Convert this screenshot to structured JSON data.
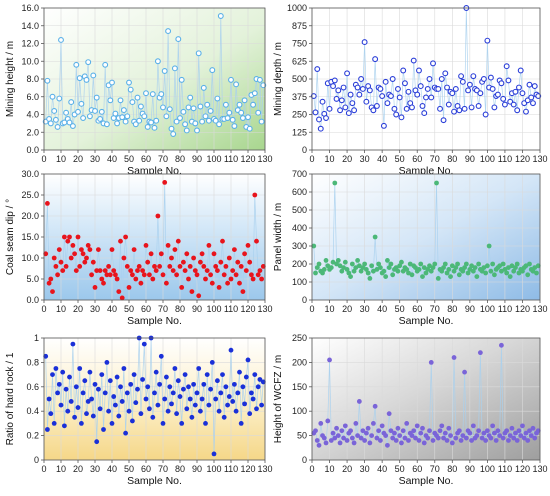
{
  "chart_data": [
    {
      "type": "scatter",
      "xlabel": "Sample No.",
      "ylabel": "Mining height / m",
      "xlim": [
        0,
        130
      ],
      "ylim": [
        0,
        16
      ],
      "xticks": [
        "0",
        "10",
        "20",
        "30",
        "40",
        "50",
        "60",
        "70",
        "80",
        "90",
        "100",
        "110",
        "120",
        "130"
      ],
      "yticks": [
        "0.0",
        "2.0",
        "4.0",
        "6.0",
        "8.0",
        "10.0",
        "12.0",
        "14.0",
        "16.0"
      ],
      "marker": "open-circle",
      "color": "#5ab0e8",
      "background": "green-gradient",
      "grid": true,
      "y": [
        3.2,
        7.8,
        3.5,
        3.0,
        6.0,
        4.4,
        3.4,
        2.6,
        5.8,
        12.4,
        3.0,
        3.1,
        4.2,
        3.5,
        3.1,
        5.4,
        2.7,
        4.0,
        9.6,
        4.3,
        8.1,
        5.2,
        3.6,
        8.3,
        7.9,
        9.9,
        3.8,
        4.5,
        8.4,
        4.4,
        5.9,
        3.3,
        3.5,
        4.3,
        3.0,
        9.6,
        2.9,
        7.3,
        5.6,
        7.6,
        3.6,
        4.1,
        3.0,
        3.6,
        5.6,
        3.7,
        4.5,
        3.2,
        3.8,
        7.6,
        6.8,
        5.4,
        3.2,
        2.9,
        5.9,
        3.3,
        4.9,
        4.1,
        3.8,
        6.4,
        2.6,
        3.2,
        3.1,
        6.3,
        2.5,
        3.3,
        10.0,
        5.9,
        6.3,
        4.8,
        8.9,
        3.8,
        13.4,
        4.6,
        2.4,
        1.8,
        9.2,
        3.2,
        12.5,
        3.6,
        7.9,
        4.3,
        2.9,
        2.2,
        4.8,
        5.9,
        3.2,
        4.7,
        3.0,
        2.2,
        10.9,
        4.9,
        3.2,
        7.0,
        3.8,
        5.1,
        3.3,
        4.4,
        9.0,
        3.5,
        3.3,
        5.8,
        2.9,
        15.1,
        3.5,
        3.5,
        5.1,
        3.6,
        4.2,
        7.9,
        3.4,
        2.7,
        7.4,
        4.5,
        5.1,
        4.2,
        3.6,
        5.6,
        2.6,
        3.7,
        2.4,
        6.2,
        5.1,
        6.4,
        8.0,
        4.2,
        7.9,
        3.2,
        7.3
      ]
    },
    {
      "type": "scatter",
      "xlabel": "Sample No.",
      "ylabel": "Mining depth / m",
      "xlim": [
        0,
        130
      ],
      "ylim": [
        0,
        1000
      ],
      "xticks": [
        "0",
        "10",
        "20",
        "30",
        "40",
        "50",
        "60",
        "70",
        "80",
        "90",
        "100",
        "110",
        "120",
        "130"
      ],
      "yticks": [
        "0",
        "125",
        "250",
        "375",
        "500",
        "625",
        "750",
        "875",
        "1000"
      ],
      "marker": "open-circle",
      "color": "#2a3ed8",
      "background": "white",
      "grid": true,
      "y": [
        380,
        265,
        570,
        215,
        150,
        340,
        255,
        225,
        470,
        290,
        480,
        450,
        490,
        360,
        420,
        280,
        350,
        440,
        300,
        540,
        260,
        390,
        330,
        280,
        460,
        440,
        390,
        500,
        430,
        760,
        340,
        450,
        420,
        300,
        280,
        640,
        310,
        440,
        430,
        380,
        170,
        480,
        330,
        390,
        380,
        500,
        290,
        250,
        430,
        370,
        230,
        560,
        470,
        290,
        410,
        330,
        300,
        630,
        420,
        390,
        560,
        450,
        310,
        260,
        370,
        430,
        500,
        370,
        610,
        440,
        430,
        430,
        290,
        500,
        210,
        540,
        440,
        320,
        410,
        400,
        270,
        430,
        310,
        280,
        520,
        480,
        290,
        1000,
        420,
        460,
        300,
        520,
        430,
        420,
        310,
        400,
        480,
        500,
        250,
        770,
        440,
        510,
        430,
        300,
        380,
        390,
        490,
        470,
        360,
        320,
        590,
        490,
        340,
        400,
        320,
        410,
        280,
        440,
        560,
        400,
        330,
        270,
        350,
        460,
        370,
        330,
        450,
        390,
        380
      ]
    },
    {
      "type": "scatter",
      "xlabel": "Sample No.",
      "ylabel": "Coal seam dip / °",
      "xlim": [
        0,
        130
      ],
      "ylim": [
        0,
        30
      ],
      "xticks": [
        "0",
        "10",
        "20",
        "30",
        "40",
        "50",
        "60",
        "70",
        "80",
        "90",
        "100",
        "110",
        "120",
        "130"
      ],
      "yticks": [
        "0.0",
        "5.0",
        "10.0",
        "15.0",
        "20.0",
        "25.0",
        "30.0"
      ],
      "marker": "filled-circle",
      "color": "#e8141c",
      "background": "blue-gradient",
      "grid": true,
      "y": [
        11,
        23,
        4,
        5,
        2,
        10,
        8,
        6,
        12,
        9,
        7,
        15,
        8,
        14,
        15,
        10,
        13,
        11,
        7,
        15,
        8,
        12,
        11,
        9,
        10,
        13,
        12,
        6,
        9,
        3,
        7,
        12,
        7,
        5,
        4,
        7,
        6,
        8,
        6,
        12,
        7,
        6,
        5,
        2,
        14,
        0.5,
        10,
        15,
        8,
        3,
        7,
        6,
        12,
        5,
        7,
        8,
        4,
        7,
        6,
        13,
        9,
        6,
        11,
        5,
        8,
        7,
        20,
        8,
        11,
        6,
        28,
        4,
        13,
        8,
        10,
        7,
        12,
        6,
        14,
        8,
        3,
        9,
        7,
        11,
        5,
        8,
        2,
        10,
        7,
        6,
        1,
        9,
        11,
        8,
        5,
        7,
        13,
        6,
        4,
        11,
        8,
        7,
        3,
        9,
        14,
        6,
        8,
        4,
        10,
        5,
        7,
        12,
        6,
        9,
        4,
        8,
        2,
        11,
        7,
        13,
        9,
        6,
        5,
        25,
        14,
        6,
        7,
        5,
        8
      ]
    },
    {
      "type": "scatter",
      "xlabel": "Sample No.",
      "ylabel": "Panel width / m",
      "xlim": [
        0,
        130
      ],
      "ylim": [
        0,
        700
      ],
      "xticks": [
        "0",
        "10",
        "20",
        "30",
        "40",
        "50",
        "60",
        "70",
        "80",
        "90",
        "100",
        "110",
        "120",
        "130"
      ],
      "yticks": [
        "0",
        "100",
        "200",
        "300",
        "400",
        "500",
        "600",
        "700"
      ],
      "marker": "filled-circle",
      "color": "#4cb878",
      "background": "blue-gradient",
      "grid": true,
      "y": [
        300,
        150,
        180,
        200,
        160,
        150,
        170,
        220,
        190,
        170,
        180,
        210,
        650,
        200,
        220,
        190,
        160,
        180,
        210,
        170,
        150,
        130,
        200,
        160,
        180,
        220,
        190,
        160,
        180,
        200,
        170,
        150,
        120,
        190,
        160,
        350,
        170,
        200,
        180,
        150,
        160,
        130,
        220,
        180,
        200,
        140,
        170,
        180,
        160,
        190,
        210,
        160,
        180,
        170,
        150,
        200,
        140,
        190,
        180,
        160,
        170,
        200,
        130,
        180,
        150,
        170,
        190,
        160,
        180,
        200,
        650,
        120,
        170,
        160,
        180,
        200,
        150,
        170,
        130,
        190,
        160,
        180,
        200,
        140,
        170,
        160,
        180,
        200,
        150,
        170,
        190,
        160,
        180,
        130,
        200,
        170,
        160,
        180,
        150,
        190,
        300,
        160,
        200,
        140,
        170,
        180,
        190,
        160,
        200,
        170,
        150,
        180,
        130,
        190,
        160,
        180,
        200,
        150,
        170,
        160,
        180,
        190,
        140,
        200,
        170,
        160,
        180,
        150,
        190
      ]
    },
    {
      "type": "scatter",
      "xlabel": "Sample No.",
      "ylabel": "Ratio of hard rock / 1",
      "xlim": [
        0,
        130
      ],
      "ylim": [
        0,
        1
      ],
      "xticks": [
        "0",
        "10",
        "20",
        "30",
        "40",
        "50",
        "60",
        "70",
        "80",
        "90",
        "100",
        "110",
        "120",
        "130"
      ],
      "yticks": [
        "0",
        "0.2",
        "0.4",
        "0.6",
        "0.8",
        "1"
      ],
      "marker": "filled-circle",
      "color": "#1a30d8",
      "background": "yellow-gradient",
      "grid": true,
      "y": [
        0.85,
        0.25,
        0.5,
        0.38,
        0.7,
        0.3,
        0.75,
        0.55,
        0.62,
        0.45,
        0.72,
        0.28,
        0.58,
        0.4,
        0.68,
        0.48,
        0.95,
        0.35,
        0.6,
        0.43,
        0.75,
        0.3,
        0.55,
        0.65,
        0.38,
        0.48,
        0.72,
        0.5,
        0.36,
        0.62,
        0.15,
        0.58,
        0.42,
        0.7,
        0.25,
        0.55,
        0.8,
        0.4,
        0.65,
        0.3,
        0.52,
        0.45,
        0.68,
        0.36,
        0.6,
        0.48,
        0.75,
        0.22,
        0.55,
        0.4,
        0.62,
        0.32,
        0.7,
        0.47,
        0.58,
        1.0,
        0.38,
        0.66,
        0.95,
        0.5,
        0.6,
        0.42,
        1.0,
        0.35,
        0.55,
        0.72,
        0.45,
        0.62,
        0.85,
        0.3,
        0.5,
        0.68,
        0.4,
        0.6,
        0.46,
        0.55,
        0.75,
        0.38,
        0.65,
        0.52,
        0.3,
        0.58,
        0.7,
        0.42,
        0.6,
        0.5,
        0.35,
        0.62,
        0.45,
        0.55,
        0.75,
        0.4,
        0.5,
        0.62,
        0.3,
        0.7,
        0.45,
        0.58,
        0.8,
        0.05,
        0.5,
        0.65,
        0.4,
        0.55,
        0.7,
        0.35,
        0.6,
        0.45,
        0.52,
        0.9,
        0.48,
        0.62,
        0.4,
        0.55,
        0.72,
        0.3,
        0.6,
        0.46,
        0.68,
        0.82,
        0.38,
        0.55,
        0.5,
        0.7,
        0.42,
        0.6,
        0.66,
        0.45,
        0.64
      ]
    },
    {
      "type": "scatter",
      "xlabel": "Sample No.",
      "ylabel": "Height of WCFZ / m",
      "xlim": [
        0,
        130
      ],
      "ylim": [
        0,
        250
      ],
      "xticks": [
        "0",
        "10",
        "20",
        "30",
        "40",
        "50",
        "60",
        "70",
        "80",
        "90",
        "100",
        "110",
        "120",
        "130"
      ],
      "yticks": [
        "0",
        "50",
        "100",
        "150",
        "200",
        "250"
      ],
      "marker": "filled-circle",
      "color": "#7a64d8",
      "background": "gray-gradient",
      "grid": true,
      "y": [
        55,
        60,
        40,
        30,
        75,
        50,
        45,
        35,
        80,
        205,
        40,
        55,
        45,
        65,
        50,
        35,
        60,
        45,
        70,
        40,
        55,
        60,
        45,
        35,
        75,
        50,
        120,
        45,
        60,
        40,
        55,
        65,
        35,
        50,
        75,
        110,
        45,
        60,
        40,
        70,
        55,
        50,
        30,
        95,
        60,
        45,
        55,
        40,
        65,
        50,
        35,
        60,
        45,
        75,
        40,
        55,
        50,
        60,
        45,
        70,
        40,
        55,
        65,
        35,
        50,
        45,
        60,
        200,
        40,
        55,
        50,
        45,
        60,
        70,
        45,
        55,
        40,
        65,
        50,
        35,
        210,
        45,
        55,
        60,
        40,
        50,
        180,
        45,
        60,
        55,
        40,
        70,
        45,
        50,
        60,
        220,
        45,
        55,
        40,
        60,
        50,
        45,
        70,
        55,
        40,
        60,
        50,
        235,
        45,
        55,
        60,
        40,
        50,
        65,
        45,
        55,
        40,
        60,
        50,
        70,
        45,
        55,
        40,
        60,
        50,
        65,
        45,
        55,
        60
      ]
    }
  ]
}
